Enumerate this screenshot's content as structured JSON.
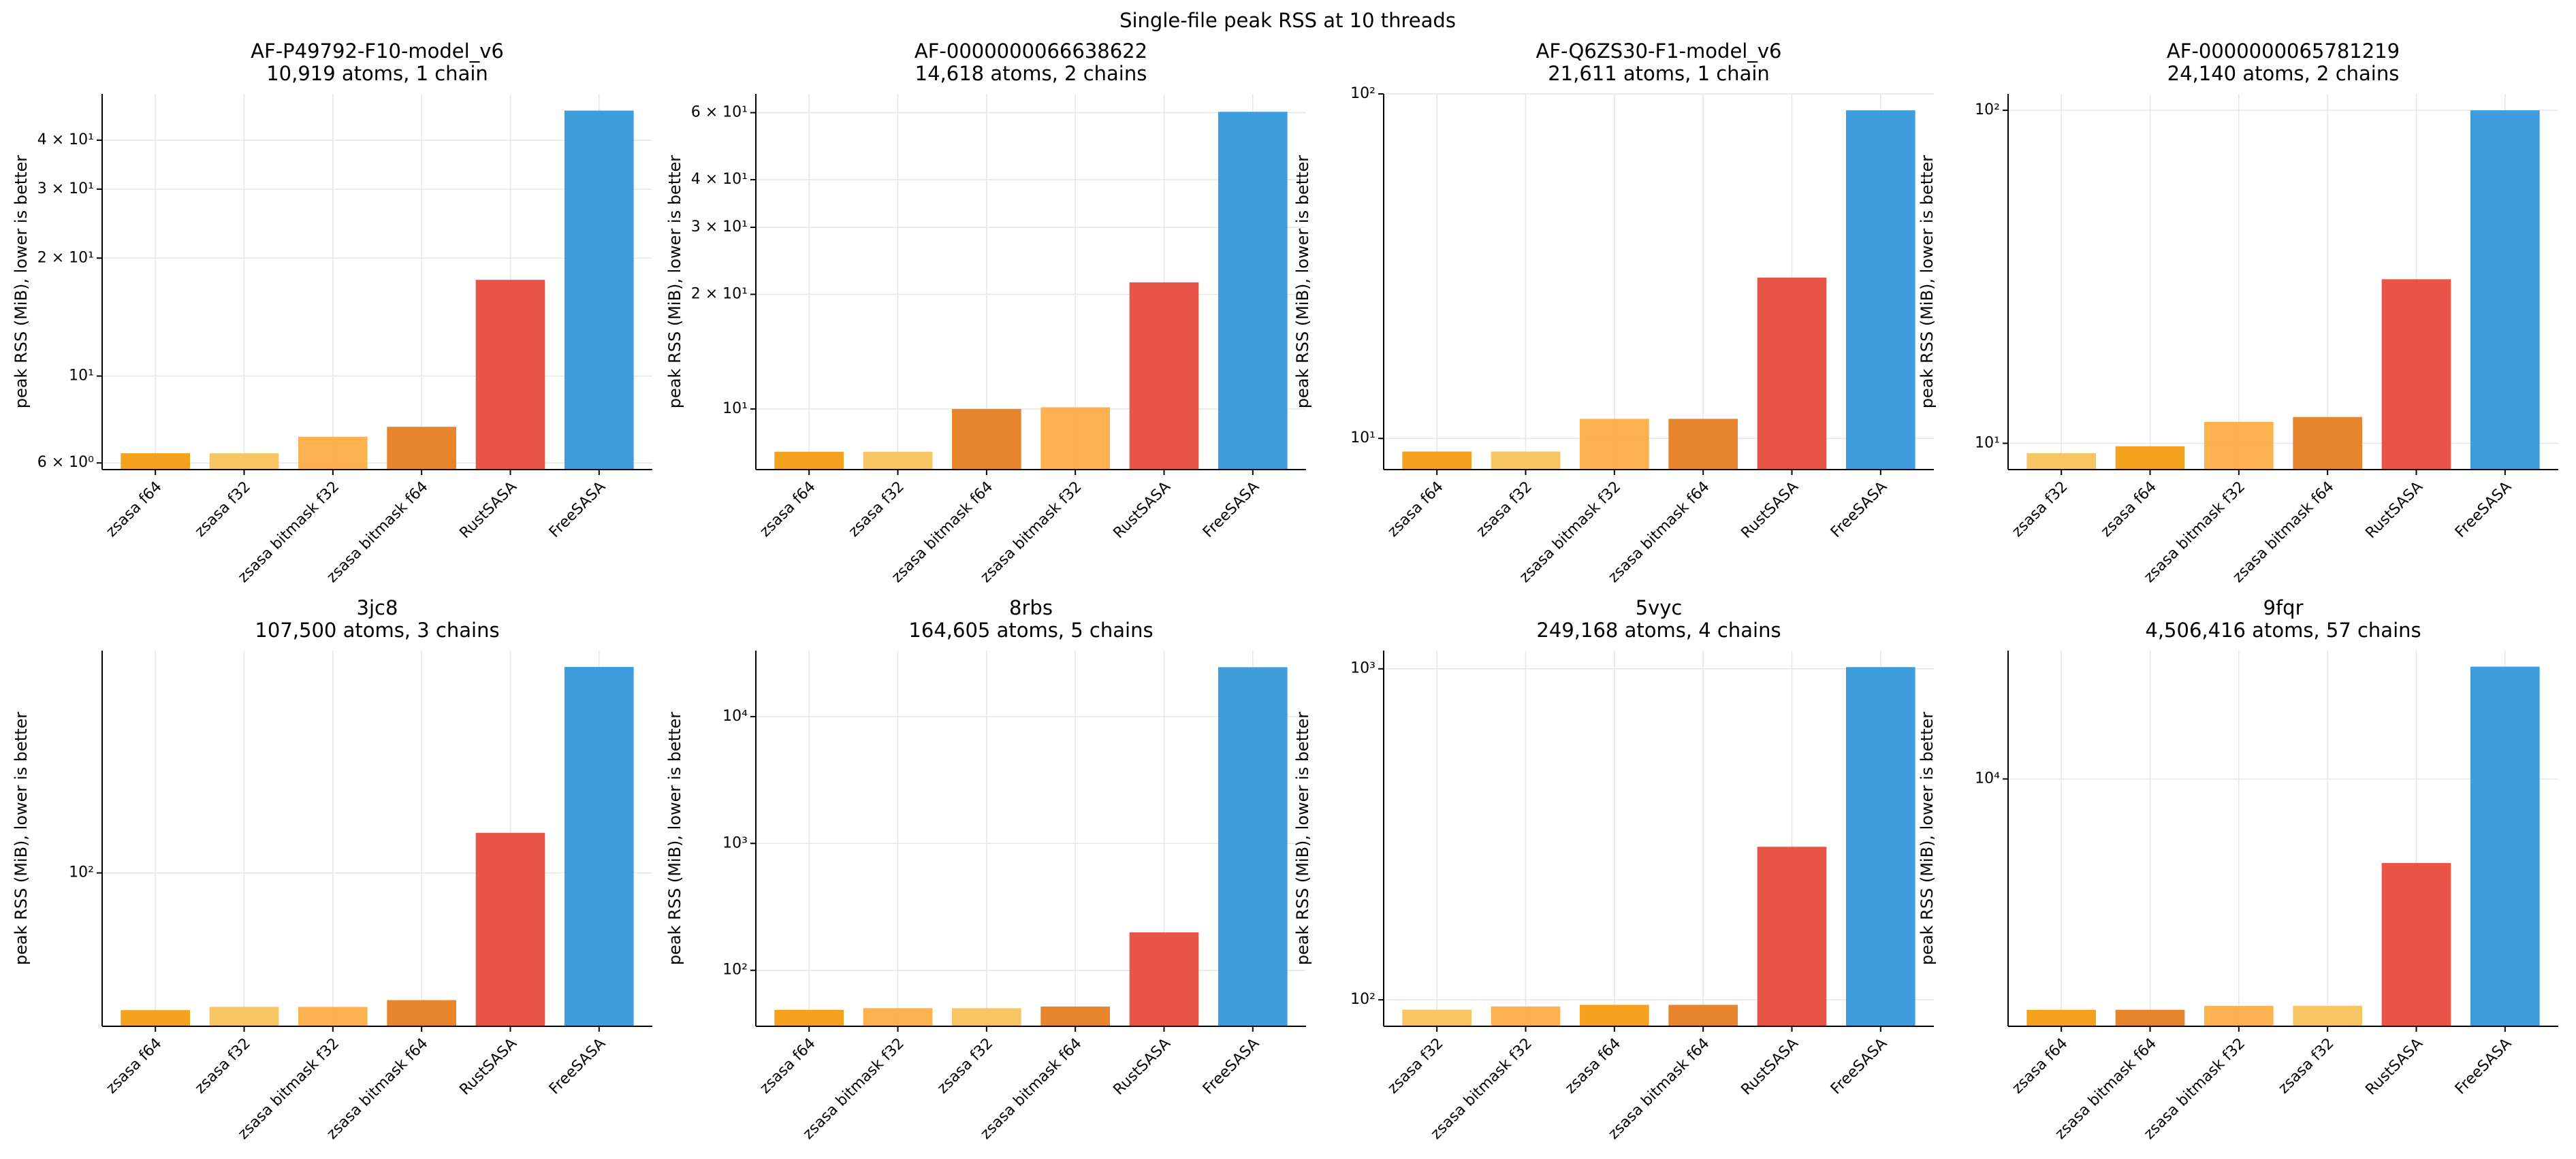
{
  "title": "Single-file peak RSS at 10 threads",
  "chart_data": [
    {
      "type": "bar",
      "title": "AF-P49792-F10-model_v6",
      "subtitle": "10,919 atoms, 1 chain",
      "ylabel": "peak RSS (MiB), lower is better",
      "categories": [
        "zsasa f64",
        "zsasa f32",
        "zsasa bitmask f32",
        "zsasa bitmask f64",
        "RustSASA",
        "FreeSASA"
      ],
      "values": [
        6.35,
        6.35,
        7.0,
        7.42,
        17.6,
        47.6
      ],
      "colors": [
        "#f39c12",
        "#f7c25c",
        "#fdae47",
        "#e67e22",
        "#e74c3c",
        "#3498db"
      ],
      "log": true,
      "grid": true,
      "ylim": [
        5.77,
        52.5
      ],
      "yticks": [
        {
          "value": 6,
          "label": "6 × 10⁰"
        },
        {
          "value": 10,
          "label": "10¹"
        },
        {
          "value": 20,
          "label": "2 × 10¹"
        },
        {
          "value": 30,
          "label": "3 × 10¹"
        },
        {
          "value": 40,
          "label": "4 × 10¹"
        }
      ]
    },
    {
      "type": "bar",
      "title": "AF-0000000066638622",
      "subtitle": "14,618 atoms, 2 chains",
      "ylabel": "peak RSS (MiB), lower is better",
      "categories": [
        "zsasa f64",
        "zsasa f32",
        "zsasa bitmask f64",
        "zsasa bitmask f32",
        "RustSASA",
        "FreeSASA"
      ],
      "values": [
        7.72,
        7.72,
        10.0,
        10.1,
        21.5,
        60.3
      ],
      "colors": [
        "#f39c12",
        "#f7c25c",
        "#e67e22",
        "#fdae47",
        "#e74c3c",
        "#3498db"
      ],
      "log": true,
      "grid": true,
      "ylim": [
        6.93,
        67.2
      ],
      "yticks": [
        {
          "value": 10,
          "label": "10¹"
        },
        {
          "value": 20,
          "label": "2 × 10¹"
        },
        {
          "value": 30,
          "label": "3 × 10¹"
        },
        {
          "value": 40,
          "label": "4 × 10¹"
        },
        {
          "value": 60,
          "label": "6 × 10¹"
        }
      ]
    },
    {
      "type": "bar",
      "title": "AF-Q6ZS30-F1-model_v6",
      "subtitle": "21,611 atoms, 1 chain",
      "ylabel": "peak RSS (MiB), lower is better",
      "categories": [
        "zsasa f64",
        "zsasa f32",
        "zsasa bitmask f32",
        "zsasa bitmask f64",
        "RustSASA",
        "FreeSASA"
      ],
      "values": [
        9.16,
        9.16,
        11.4,
        11.4,
        29.3,
        89.6
      ],
      "colors": [
        "#f39c12",
        "#f7c25c",
        "#fdae47",
        "#e67e22",
        "#e74c3c",
        "#3498db"
      ],
      "log": true,
      "grid": true,
      "ylim": [
        8.12,
        100
      ],
      "yticks": [
        {
          "value": 10,
          "label": "10¹"
        },
        {
          "value": 100,
          "label": "10²"
        }
      ]
    },
    {
      "type": "bar",
      "title": "AF-0000000065781219",
      "subtitle": "24,140 atoms, 2 chains",
      "ylabel": "peak RSS (MiB), lower is better",
      "categories": [
        "zsasa f32",
        "zsasa f64",
        "zsasa bitmask f32",
        "zsasa bitmask f64",
        "RustSASA",
        "FreeSASA"
      ],
      "values": [
        9.34,
        9.8,
        11.6,
        12.0,
        31.1,
        100
      ],
      "colors": [
        "#f7c25c",
        "#f39c12",
        "#fdae47",
        "#e67e22",
        "#e74c3c",
        "#3498db"
      ],
      "log": true,
      "grid": true,
      "ylim": [
        8.34,
        112
      ],
      "yticks": [
        {
          "value": 10,
          "label": "10¹"
        },
        {
          "value": 100,
          "label": "10²"
        }
      ]
    },
    {
      "type": "bar",
      "title": "3jc8",
      "subtitle": "107,500 atoms, 3 chains",
      "ylabel": "peak RSS (MiB), lower is better",
      "categories": [
        "zsasa f64",
        "zsasa f32",
        "zsasa bitmask f32",
        "zsasa bitmask f64",
        "RustSASA",
        "FreeSASA"
      ],
      "values": [
        62,
        62.7,
        62.7,
        64.2,
        115,
        205
      ],
      "colors": [
        "#f39c12",
        "#f7c25c",
        "#fdae47",
        "#e67e22",
        "#e74c3c",
        "#3498db"
      ],
      "log": true,
      "grid": true,
      "ylim": [
        58.6,
        217
      ],
      "yticks": [
        {
          "value": 100,
          "label": "10²"
        }
      ]
    },
    {
      "type": "bar",
      "title": "8rbs",
      "subtitle": "164,605 atoms, 5 chains",
      "ylabel": "peak RSS (MiB), lower is better",
      "categories": [
        "zsasa f64",
        "zsasa bitmask f32",
        "zsasa f32",
        "zsasa bitmask f64",
        "RustSASA",
        "FreeSASA"
      ],
      "values": [
        48.8,
        50.3,
        50.3,
        51.8,
        199,
        24500
      ],
      "colors": [
        "#f39c12",
        "#fdae47",
        "#f7c25c",
        "#e67e22",
        "#e74c3c",
        "#3498db"
      ],
      "log": true,
      "grid": true,
      "ylim": [
        36.2,
        33100
      ],
      "yticks": [
        {
          "value": 100,
          "label": "10²"
        },
        {
          "value": 1000,
          "label": "10³"
        },
        {
          "value": 10000,
          "label": "10⁴"
        }
      ]
    },
    {
      "type": "bar",
      "title": "5vyc",
      "subtitle": "249,168 atoms, 4 chains",
      "ylabel": "peak RSS (MiB), lower is better",
      "categories": [
        "zsasa f32",
        "zsasa bitmask f32",
        "zsasa f64",
        "zsasa bitmask f64",
        "RustSASA",
        "FreeSASA"
      ],
      "values": [
        93.4,
        95.5,
        96.6,
        96.6,
        290,
        1012
      ],
      "colors": [
        "#f7c25c",
        "#fdae47",
        "#f39c12",
        "#e67e22",
        "#e74c3c",
        "#3498db"
      ],
      "log": true,
      "grid": true,
      "ylim": [
        83.2,
        1135
      ],
      "yticks": [
        {
          "value": 100,
          "label": "10²"
        },
        {
          "value": 1000,
          "label": "10³"
        }
      ]
    },
    {
      "type": "bar",
      "title": "9fqr",
      "subtitle": "4,506,416 atoms, 57 chains",
      "ylabel": "peak RSS (MiB), lower is better",
      "categories": [
        "zsasa f64",
        "zsasa bitmask f64",
        "zsasa bitmask f32",
        "zsasa f32",
        "RustSASA",
        "FreeSASA"
      ],
      "values": [
        1995,
        1995,
        2050,
        2050,
        5560,
        21900
      ],
      "colors": [
        "#f39c12",
        "#e67e22",
        "#fdae47",
        "#f7c25c",
        "#e74c3c",
        "#3498db"
      ],
      "log": true,
      "grid": true,
      "ylim": [
        1778,
        24500
      ],
      "yticks": [
        {
          "value": 10000,
          "label": "10⁴"
        }
      ]
    }
  ]
}
